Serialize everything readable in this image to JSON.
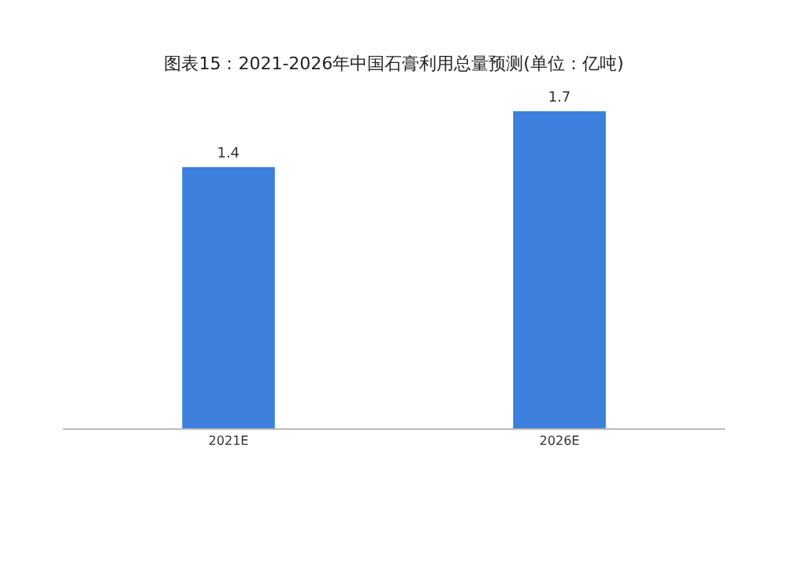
{
  "chart_data": {
    "type": "bar",
    "title": "图表15：2021-2026年中国石膏利用总量预测(单位：亿吨)",
    "categories": [
      "2021E",
      "2026E"
    ],
    "values": [
      1.4,
      1.7
    ],
    "color": "#3d7fdc",
    "data_labels": true,
    "grid": false
  }
}
